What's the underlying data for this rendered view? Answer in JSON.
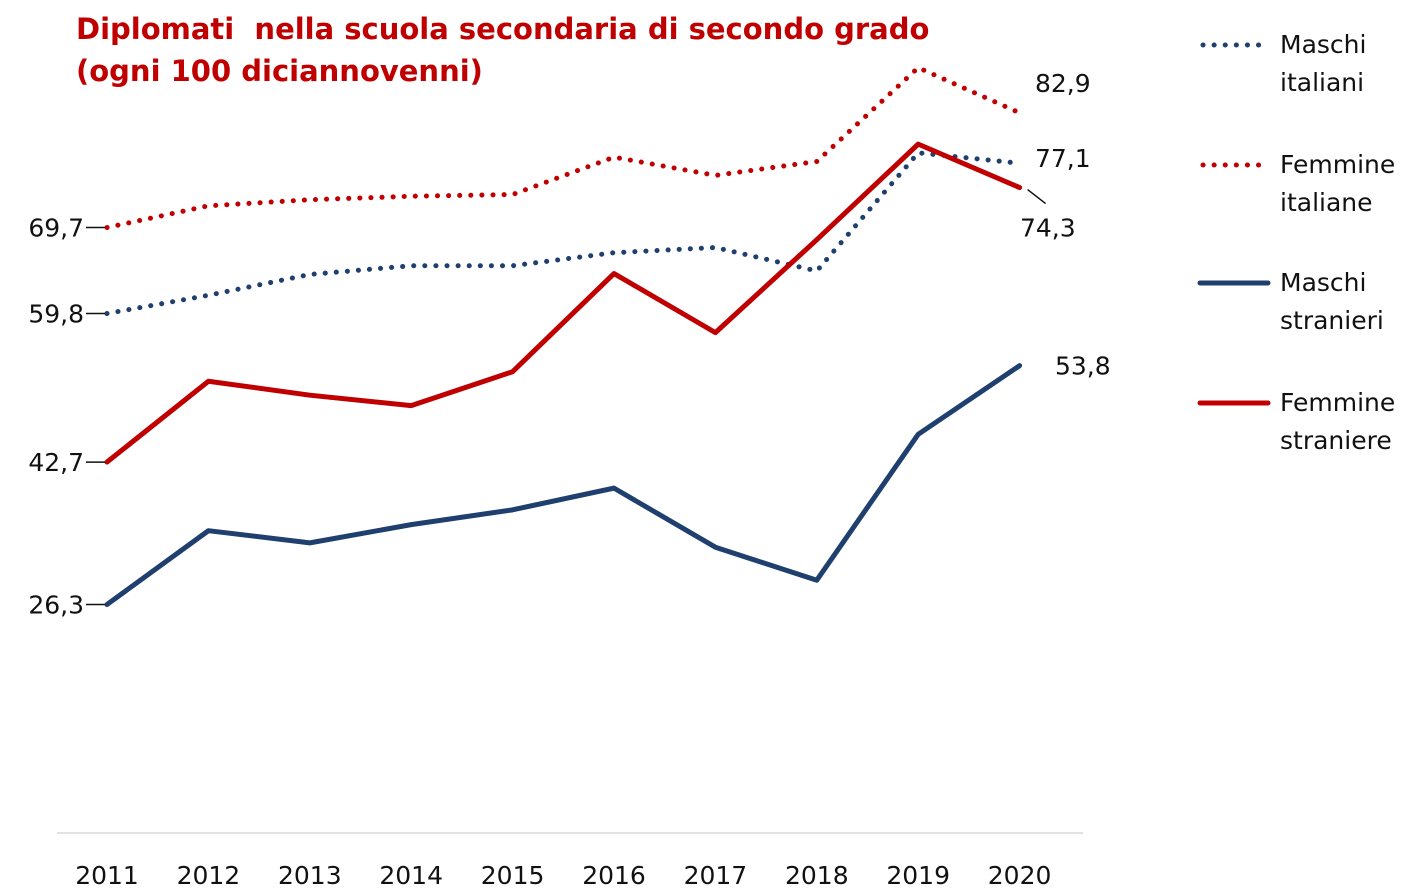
{
  "chart_data": {
    "type": "line",
    "title": "Diplomati  nella scuola secondaria di secondo grado\n(ogni 100 diciannovenni)",
    "categories": [
      "2011",
      "2012",
      "2013",
      "2014",
      "2015",
      "2016",
      "2017",
      "2018",
      "2019",
      "2020"
    ],
    "ylim": [
      0,
      90
    ],
    "series": [
      {
        "name": "Maschi italiani",
        "color": "#1f3f6e",
        "style": "dotted",
        "values": [
          59.8,
          61.9,
          64.3,
          65.3,
          65.3,
          66.8,
          67.4,
          64.7,
          78.3,
          77.1
        ],
        "value_labels": [
          "59,8",
          null,
          null,
          null,
          null,
          null,
          null,
          null,
          null,
          "77,1"
        ]
      },
      {
        "name": "Femmine italiane",
        "color": "#c00000",
        "style": "dotted",
        "values": [
          69.7,
          72.2,
          72.9,
          73.3,
          73.5,
          77.8,
          75.7,
          77.3,
          88.1,
          82.9
        ],
        "value_labels": [
          "69,7",
          null,
          null,
          null,
          null,
          null,
          null,
          null,
          null,
          "82,9"
        ]
      },
      {
        "name": "Maschi stranieri",
        "color": "#1f3f6e",
        "style": "solid",
        "values": [
          26.3,
          34.8,
          33.4,
          35.5,
          37.2,
          39.7,
          32.9,
          29.1,
          45.9,
          53.8
        ],
        "value_labels": [
          "26,3",
          null,
          null,
          null,
          null,
          null,
          null,
          null,
          null,
          "53,8"
        ]
      },
      {
        "name": "Femmine straniere",
        "color": "#c00000",
        "style": "solid",
        "values": [
          42.7,
          52.0,
          50.4,
          49.2,
          53.1,
          64.4,
          57.6,
          68.3,
          79.3,
          74.3
        ],
        "value_labels": [
          "42,7",
          null,
          null,
          null,
          null,
          null,
          null,
          null,
          null,
          "74,3"
        ]
      }
    ]
  }
}
